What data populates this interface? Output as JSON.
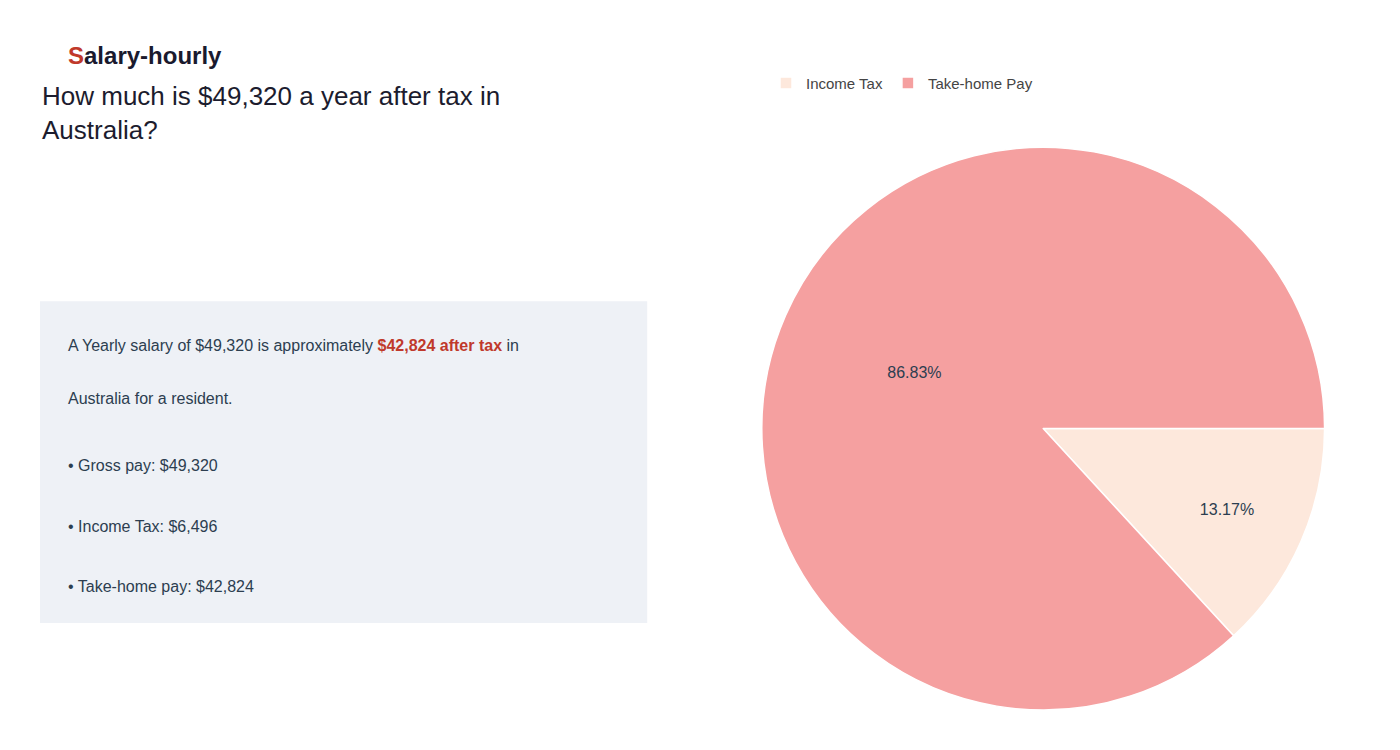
{
  "chart_data": {
    "type": "pie",
    "title": [
      "How much is $49,320 a year after tax in",
      "Australia?"
    ],
    "categories": [
      "Income Tax",
      "Take-home Pay"
    ],
    "values": [
      13.17,
      86.83
    ],
    "value_labels": [
      "13.17%",
      "86.83%"
    ],
    "data_labels": true,
    "colors": [
      "#fde8dc",
      "#f5a0a0"
    ],
    "legend": "upper left",
    "annotations": [
      [
        {
          "text": "S",
          "color": "#c0392b"
        },
        {
          "text": "alary-hourly",
          "color": "#1a1a2e"
        }
      ],
      [
        {
          "text": "A Yearly salary of $49,320 is approximately ",
          "color": "#2c3e50"
        },
        {
          "text": "$42,824 after tax",
          "color": "#c0392b"
        },
        {
          "text": " in",
          "color": "#2c3e50"
        }
      ],
      [
        {
          "text": "Australia for a resident.",
          "color": "#2c3e50"
        }
      ],
      [
        {
          "text": "• Gross pay: $49,320",
          "color": "#2c3e50"
        }
      ],
      [
        {
          "text": "• Income Tax: $6,496",
          "color": "#2c3e50"
        }
      ],
      [
        {
          "text": "• Take-home pay: $42,824",
          "color": "#2c3e50"
        }
      ]
    ]
  }
}
